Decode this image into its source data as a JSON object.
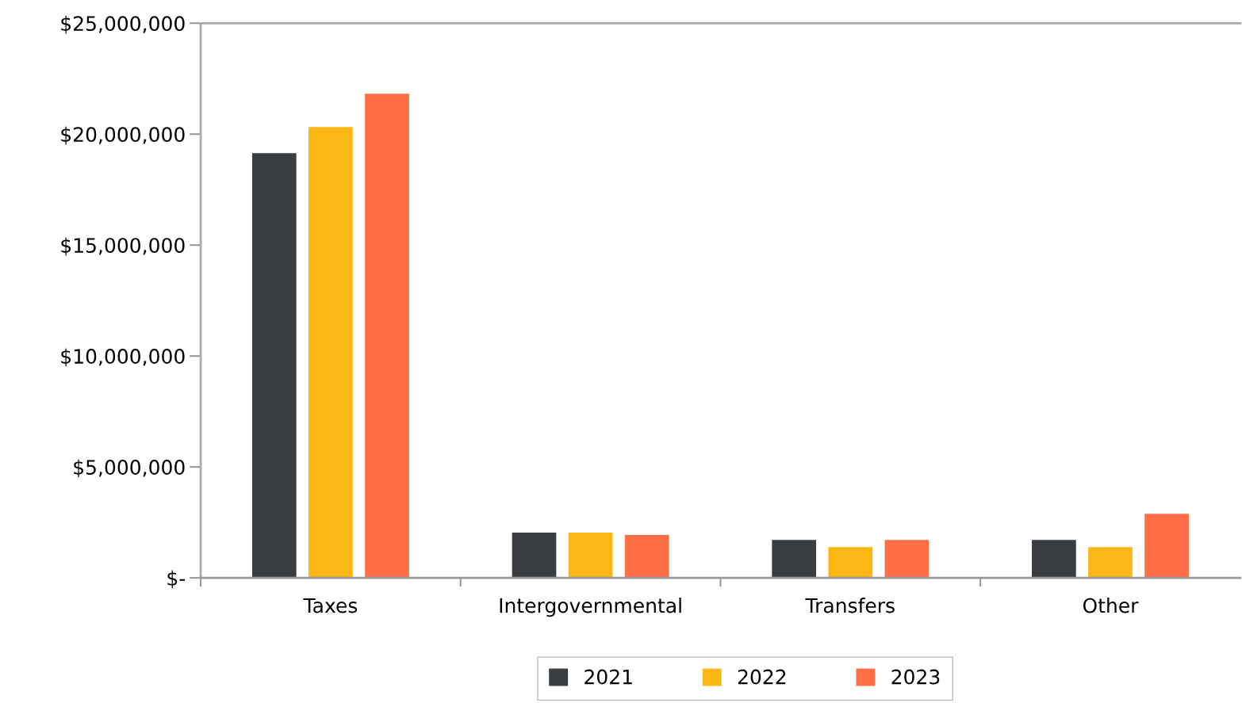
{
  "chart_data": {
    "type": "bar",
    "categories": [
      "Taxes",
      "Intergovernmental",
      "Transfers",
      "Other"
    ],
    "series": [
      {
        "name": "2021",
        "color": "#3a3d41",
        "values": [
          19140000,
          2040000,
          1710000,
          1710000
        ]
      },
      {
        "name": "2022",
        "color": "#fdb714",
        "values": [
          20320000,
          2040000,
          1390000,
          1390000
        ]
      },
      {
        "name": "2023",
        "color": "#ff6f47",
        "values": [
          21820000,
          1930000,
          1710000,
          2890000
        ]
      }
    ],
    "ylim": [
      0,
      25000000
    ],
    "yticks": [
      {
        "value": 0,
        "label": "$-"
      },
      {
        "value": 5000000,
        "label": "$5,000,000"
      },
      {
        "value": 10000000,
        "label": "$10,000,000"
      },
      {
        "value": 15000000,
        "label": "$15,000,000"
      },
      {
        "value": 20000000,
        "label": "$20,000,000"
      },
      {
        "value": 25000000,
        "label": "$25,000,000"
      }
    ],
    "grid": false,
    "legend": "bottom"
  }
}
